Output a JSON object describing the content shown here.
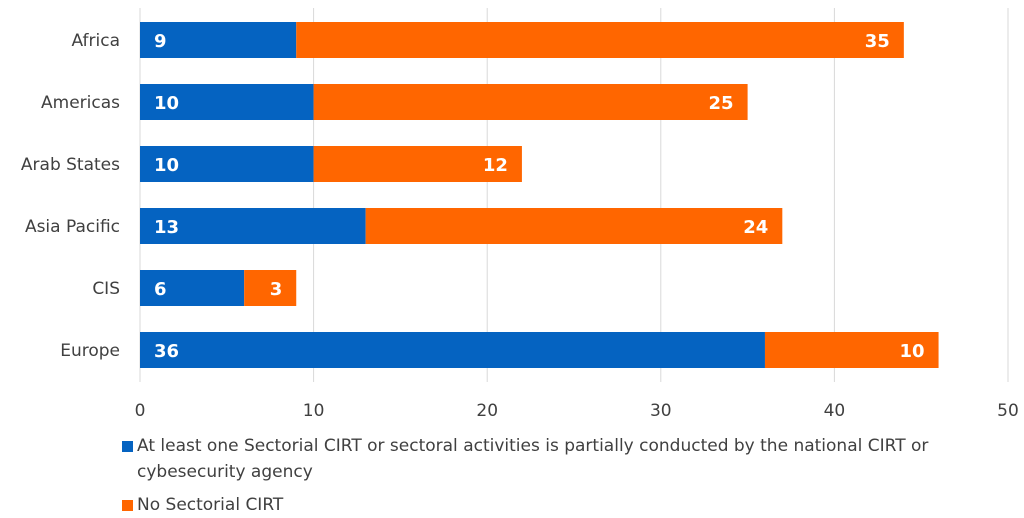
{
  "colors": {
    "series1": "#0563c1",
    "series2": "#ff6600",
    "grid": "#d9d9d9",
    "tick_text": "#404040",
    "label_text": "#ffffff"
  },
  "chart_data": {
    "type": "bar",
    "orientation": "horizontal",
    "stacked": true,
    "categories": [
      "Africa",
      "Americas",
      "Arab States",
      "Asia Pacific",
      "CIS",
      "Europe"
    ],
    "series": [
      {
        "name": "At least one Sectorial CIRT or sectoral activities is partially conducted by the national CIRT or cybesecurity agency",
        "values": [
          9,
          10,
          10,
          13,
          6,
          36
        ],
        "color": "#0563c1"
      },
      {
        "name": "No Sectorial CIRT",
        "values": [
          35,
          25,
          12,
          24,
          3,
          10
        ],
        "color": "#ff6600"
      }
    ],
    "xlim": [
      0,
      50
    ],
    "xticks": [
      "0",
      "10",
      "20",
      "30",
      "40",
      "50"
    ],
    "grid": true,
    "legend_position": "bottom",
    "data_labels": true
  }
}
